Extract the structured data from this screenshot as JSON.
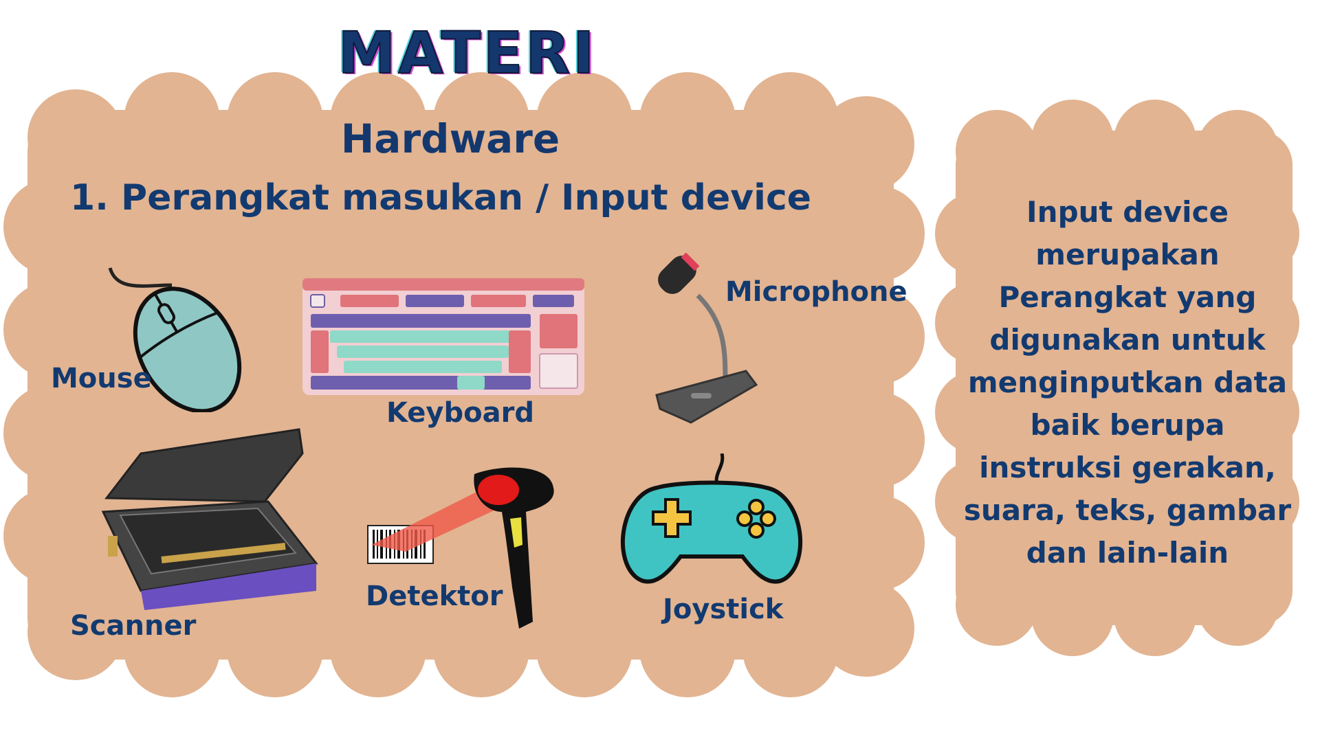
{
  "title": "MATERI",
  "main_panel": {
    "heading": "Hardware",
    "subheading": "1. Perangkat masukan / Input device",
    "devices": [
      {
        "label": "Mouse",
        "icon": "mouse-icon"
      },
      {
        "label": "Keyboard",
        "icon": "keyboard-icon"
      },
      {
        "label": "Microphone",
        "icon": "microphone-icon"
      },
      {
        "label": "Scanner",
        "icon": "scanner-icon"
      },
      {
        "label": "Detektor",
        "icon": "barcode-scanner-icon"
      },
      {
        "label": "Joystick",
        "icon": "gamepad-icon"
      }
    ]
  },
  "side_panel": {
    "description": "Input device merupakan Perangkat yang digunakan untuk menginputkan data baik berupa instruksi gerakan, suara, teks, gambar dan lain-lain"
  },
  "colors": {
    "background": "#ffffff",
    "cloud": "#e2b492",
    "text": "#123a70"
  }
}
